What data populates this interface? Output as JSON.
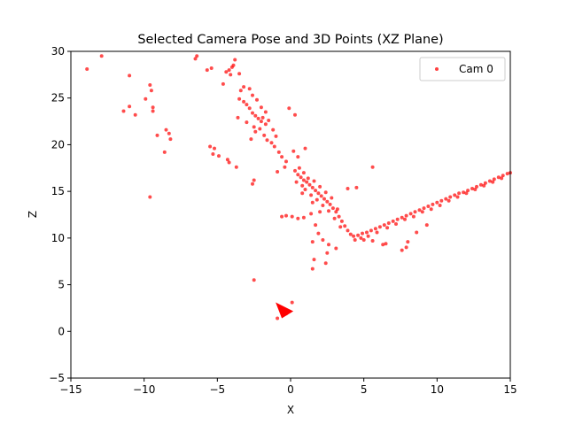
{
  "chart_data": {
    "type": "scatter",
    "title": "Selected Camera Pose and 3D Points (XZ Plane)",
    "xlabel": "X",
    "ylabel": "Z",
    "xlim": [
      -15,
      15
    ],
    "ylim": [
      -5,
      30
    ],
    "xticks": [
      "−15",
      "−10",
      "−5",
      "0",
      "5",
      "10",
      "15"
    ],
    "xtick_values": [
      -15,
      -10,
      -5,
      0,
      5,
      10,
      15
    ],
    "yticks": [
      "−5",
      "0",
      "5",
      "10",
      "15",
      "20",
      "25",
      "30"
    ],
    "ytick_values": [
      -5,
      0,
      5,
      10,
      15,
      20,
      25,
      30
    ],
    "grid": false,
    "legend": {
      "position": "top-right",
      "entries": [
        "Cam 0"
      ]
    },
    "series": [
      {
        "name": "Cam 0",
        "color": "#ff0000",
        "marker": "circle",
        "points": [
          [
            -13.9,
            28.1
          ],
          [
            -12.9,
            29.5
          ],
          [
            -11.0,
            27.4
          ],
          [
            -11.4,
            23.6
          ],
          [
            -11.0,
            24.1
          ],
          [
            -10.6,
            23.2
          ],
          [
            -9.9,
            24.9
          ],
          [
            -9.6,
            26.4
          ],
          [
            -9.5,
            25.8
          ],
          [
            -9.4,
            24.0
          ],
          [
            -9.4,
            23.6
          ],
          [
            -9.1,
            21.0
          ],
          [
            -8.5,
            21.6
          ],
          [
            -8.3,
            21.2
          ],
          [
            -8.2,
            20.6
          ],
          [
            -8.6,
            19.2
          ],
          [
            -9.6,
            14.4
          ],
          [
            -6.4,
            29.5
          ],
          [
            -6.5,
            29.2
          ],
          [
            -5.7,
            28.0
          ],
          [
            -5.4,
            28.2
          ],
          [
            -5.5,
            19.8
          ],
          [
            -5.2,
            19.6
          ],
          [
            -5.3,
            19.0
          ],
          [
            -4.9,
            18.8
          ],
          [
            -4.3,
            18.4
          ],
          [
            -4.2,
            18.1
          ],
          [
            -3.7,
            17.6
          ],
          [
            -4.6,
            26.5
          ],
          [
            -4.4,
            27.8
          ],
          [
            -4.2,
            28.0
          ],
          [
            -4.0,
            28.3
          ],
          [
            -3.9,
            28.5
          ],
          [
            -3.8,
            29.1
          ],
          [
            -4.1,
            27.5
          ],
          [
            -3.5,
            27.6
          ],
          [
            -3.4,
            25.8
          ],
          [
            -3.2,
            26.2
          ],
          [
            -3.5,
            24.9
          ],
          [
            -3.2,
            24.6
          ],
          [
            -3.0,
            24.3
          ],
          [
            -2.8,
            23.9
          ],
          [
            -2.6,
            23.4
          ],
          [
            -2.4,
            23.1
          ],
          [
            -2.2,
            22.8
          ],
          [
            -2.0,
            22.5
          ],
          [
            -1.9,
            22.9
          ],
          [
            -1.7,
            22.2
          ],
          [
            -2.1,
            21.7
          ],
          [
            -2.4,
            21.4
          ],
          [
            -1.8,
            21.0
          ],
          [
            -1.6,
            20.5
          ],
          [
            -1.3,
            20.2
          ],
          [
            -1.1,
            19.8
          ],
          [
            -0.8,
            19.2
          ],
          [
            -0.6,
            18.7
          ],
          [
            -0.3,
            18.2
          ],
          [
            -2.8,
            26.0
          ],
          [
            -2.6,
            25.3
          ],
          [
            -2.3,
            24.8
          ],
          [
            -2.0,
            24.0
          ],
          [
            -1.7,
            23.5
          ],
          [
            -1.5,
            22.6
          ],
          [
            -3.6,
            22.9
          ],
          [
            -3.0,
            22.4
          ],
          [
            -2.5,
            21.9
          ],
          [
            -2.7,
            20.6
          ],
          [
            -1.2,
            21.6
          ],
          [
            -1.0,
            20.9
          ],
          [
            -0.9,
            17.1
          ],
          [
            -0.4,
            17.6
          ],
          [
            -0.1,
            23.9
          ],
          [
            0.3,
            23.2
          ],
          [
            -2.5,
            16.2
          ],
          [
            -2.6,
            15.8
          ],
          [
            -2.5,
            5.5
          ],
          [
            -0.6,
            12.3
          ],
          [
            -0.3,
            12.4
          ],
          [
            0.1,
            12.3
          ],
          [
            0.5,
            12.1
          ],
          [
            0.9,
            12.2
          ],
          [
            0.1,
            3.1
          ],
          [
            -0.3,
            1.9
          ],
          [
            -0.9,
            1.4
          ],
          [
            -0.5,
            2.2
          ],
          [
            0.3,
            17.2
          ],
          [
            0.5,
            16.8
          ],
          [
            0.7,
            16.5
          ],
          [
            0.9,
            16.2
          ],
          [
            1.1,
            16.0
          ],
          [
            1.3,
            15.7
          ],
          [
            1.5,
            15.4
          ],
          [
            1.7,
            15.1
          ],
          [
            1.9,
            14.8
          ],
          [
            2.1,
            14.5
          ],
          [
            2.3,
            14.2
          ],
          [
            2.5,
            13.9
          ],
          [
            2.7,
            13.6
          ],
          [
            2.9,
            13.2
          ],
          [
            3.1,
            12.8
          ],
          [
            3.3,
            12.3
          ],
          [
            3.5,
            11.8
          ],
          [
            3.7,
            11.3
          ],
          [
            3.9,
            10.8
          ],
          [
            4.1,
            10.4
          ],
          [
            0.6,
            17.5
          ],
          [
            0.9,
            17.0
          ],
          [
            1.2,
            16.4
          ],
          [
            1.0,
            15.2
          ],
          [
            1.4,
            14.6
          ],
          [
            1.8,
            14.1
          ],
          [
            2.2,
            13.5
          ],
          [
            2.6,
            12.9
          ],
          [
            3.0,
            12.1
          ],
          [
            3.4,
            11.2
          ],
          [
            1.6,
            16.1
          ],
          [
            2.0,
            15.5
          ],
          [
            2.4,
            14.9
          ],
          [
            0.4,
            16.0
          ],
          [
            0.8,
            15.6
          ],
          [
            1.5,
            13.8
          ],
          [
            2.0,
            12.8
          ],
          [
            2.8,
            14.3
          ],
          [
            3.2,
            13.1
          ],
          [
            1.7,
            11.4
          ],
          [
            1.9,
            10.5
          ],
          [
            2.2,
            9.8
          ],
          [
            2.6,
            9.3
          ],
          [
            1.5,
            9.6
          ],
          [
            1.6,
            7.7
          ],
          [
            1.5,
            6.7
          ],
          [
            2.5,
            8.4
          ],
          [
            3.1,
            8.9
          ],
          [
            2.4,
            7.3
          ],
          [
            1.0,
            19.6
          ],
          [
            0.2,
            19.3
          ],
          [
            0.5,
            18.7
          ],
          [
            3.9,
            15.3
          ],
          [
            4.5,
            15.4
          ],
          [
            5.6,
            17.6
          ],
          [
            0.8,
            14.8
          ],
          [
            1.4,
            12.6
          ],
          [
            4.3,
            10.2
          ],
          [
            4.6,
            10.3
          ],
          [
            4.9,
            10.5
          ],
          [
            5.2,
            10.6
          ],
          [
            5.5,
            10.8
          ],
          [
            5.8,
            11.0
          ],
          [
            6.1,
            11.2
          ],
          [
            6.4,
            11.4
          ],
          [
            6.7,
            11.6
          ],
          [
            7.0,
            11.8
          ],
          [
            7.3,
            12.0
          ],
          [
            7.6,
            12.2
          ],
          [
            7.9,
            12.4
          ],
          [
            8.2,
            12.6
          ],
          [
            8.5,
            12.8
          ],
          [
            8.8,
            13.0
          ],
          [
            9.1,
            13.2
          ],
          [
            9.4,
            13.4
          ],
          [
            9.7,
            13.6
          ],
          [
            10.0,
            13.8
          ],
          [
            10.3,
            14.0
          ],
          [
            10.6,
            14.2
          ],
          [
            10.9,
            14.4
          ],
          [
            11.2,
            14.6
          ],
          [
            11.5,
            14.8
          ],
          [
            11.8,
            14.9
          ],
          [
            12.1,
            15.1
          ],
          [
            12.4,
            15.3
          ],
          [
            12.7,
            15.5
          ],
          [
            13.0,
            15.7
          ],
          [
            13.3,
            15.9
          ],
          [
            13.6,
            16.1
          ],
          [
            13.9,
            16.3
          ],
          [
            14.2,
            16.5
          ],
          [
            14.5,
            16.7
          ],
          [
            14.8,
            16.9
          ],
          [
            15.0,
            17.0
          ],
          [
            4.4,
            9.8
          ],
          [
            4.8,
            10.0
          ],
          [
            5.3,
            10.2
          ],
          [
            5.9,
            10.6
          ],
          [
            6.6,
            11.1
          ],
          [
            7.2,
            11.5
          ],
          [
            7.8,
            12.0
          ],
          [
            8.4,
            12.3
          ],
          [
            9.0,
            12.8
          ],
          [
            9.6,
            13.1
          ],
          [
            10.2,
            13.5
          ],
          [
            10.8,
            14.0
          ],
          [
            11.4,
            14.4
          ],
          [
            12.0,
            14.8
          ],
          [
            12.6,
            15.2
          ],
          [
            13.2,
            15.6
          ],
          [
            13.8,
            16.0
          ],
          [
            14.4,
            16.4
          ],
          [
            6.3,
            9.3
          ],
          [
            6.5,
            9.4
          ],
          [
            7.6,
            8.7
          ],
          [
            7.9,
            9.0
          ],
          [
            8.0,
            9.6
          ],
          [
            8.6,
            10.6
          ],
          [
            9.3,
            11.4
          ],
          [
            5.0,
            9.8
          ],
          [
            5.6,
            9.7
          ]
        ]
      }
    ],
    "camera_pose": {
      "x": -0.6,
      "z": 1.4,
      "color": "#ff0000"
    }
  }
}
